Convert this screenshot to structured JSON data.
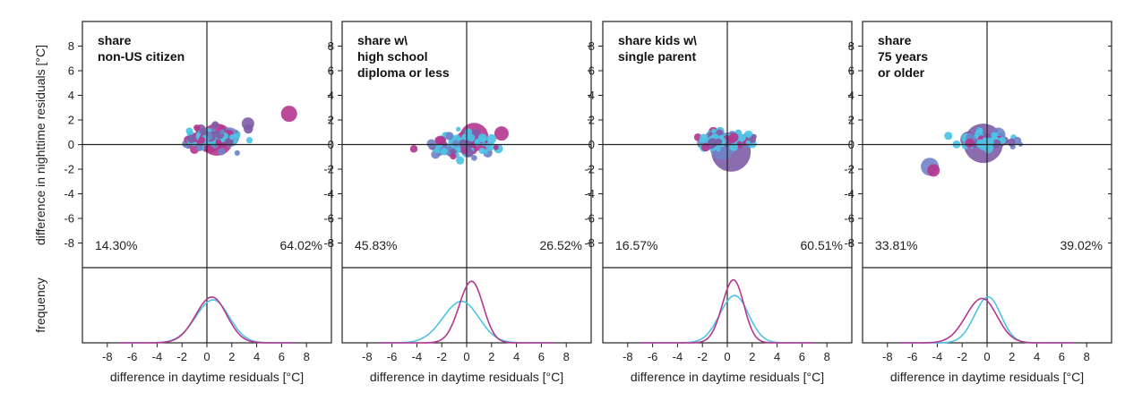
{
  "figure": {
    "ylabel_top": "difference in nighttime residuals [°C]",
    "ylabel_bottom": "frequency",
    "xlabel": "difference in daytime residuals [°C]"
  },
  "colors": {
    "magenta": "#b4378f",
    "cyan": "#4ec3e6",
    "purple": "#7e5ca6",
    "blue": "#6f84c8",
    "axis": "#222222"
  },
  "chart_data": [
    {
      "type": "scatter",
      "title": [
        "share",
        "non-US citizen"
      ],
      "xlim": [
        -10,
        10
      ],
      "ylim": [
        -10,
        10
      ],
      "xticks": [
        -8,
        -6,
        -4,
        -2,
        0,
        2,
        4,
        6,
        8
      ],
      "yticks": [
        -8,
        -6,
        -4,
        -2,
        0,
        2,
        4,
        6,
        8
      ],
      "pct_left": "14.30%",
      "pct_right": "64.02%",
      "big_points": [
        {
          "x": 0.8,
          "y": 0.4,
          "r": 18,
          "c": "magenta"
        },
        {
          "x": 0.2,
          "y": 0.2,
          "r": 12,
          "c": "magenta"
        },
        {
          "x": 1.8,
          "y": 0.6,
          "r": 11,
          "c": "blue"
        },
        {
          "x": 3.3,
          "y": 1.7,
          "r": 7,
          "c": "purple"
        },
        {
          "x": 6.6,
          "y": 2.5,
          "r": 9,
          "c": "magenta"
        },
        {
          "x": -0.5,
          "y": 1.2,
          "r": 6,
          "c": "purple"
        },
        {
          "x": -1.0,
          "y": -0.4,
          "r": 5,
          "c": "magenta"
        }
      ],
      "cloud": {
        "cx": 0.4,
        "cy": 0.4,
        "sx": 2.3,
        "sy": 0.8,
        "n": 70,
        "seed": 11
      },
      "density_magenta": {
        "mu": 0.4,
        "sd": 1.3,
        "peak": 0.64
      },
      "density_cyan": {
        "mu": 0.5,
        "sd": 1.4,
        "peak": 0.6
      }
    },
    {
      "type": "scatter",
      "title": [
        "share w\\",
        "high school",
        "diploma or less"
      ],
      "xlim": [
        -10,
        10
      ],
      "ylim": [
        -10,
        10
      ],
      "xticks": [
        -8,
        -6,
        -4,
        -2,
        0,
        2,
        4,
        6,
        8
      ],
      "yticks": [
        -8,
        -6,
        -4,
        -2,
        0,
        2,
        4,
        6,
        8
      ],
      "pct_left": "45.83%",
      "pct_right": "26.52%",
      "big_points": [
        {
          "x": 0.6,
          "y": 0.6,
          "r": 16,
          "c": "magenta"
        },
        {
          "x": 0.0,
          "y": 0.2,
          "r": 13,
          "c": "magenta"
        },
        {
          "x": 2.8,
          "y": 0.9,
          "r": 8,
          "c": "magenta"
        },
        {
          "x": -1.2,
          "y": -0.5,
          "r": 7,
          "c": "purple"
        },
        {
          "x": -2.5,
          "y": -0.8,
          "r": 5,
          "c": "blue"
        }
      ],
      "cloud": {
        "cx": -0.6,
        "cy": -0.1,
        "sx": 2.6,
        "sy": 0.8,
        "n": 75,
        "seed": 23
      },
      "density_magenta": {
        "mu": 0.4,
        "sd": 1.0,
        "peak": 0.86
      },
      "density_cyan": {
        "mu": -0.4,
        "sd": 1.5,
        "peak": 0.58
      }
    },
    {
      "type": "scatter",
      "title": [
        "share kids w\\",
        "single parent"
      ],
      "xlim": [
        -10,
        10
      ],
      "ylim": [
        -10,
        10
      ],
      "xticks": [
        -8,
        -6,
        -4,
        -2,
        0,
        2,
        4,
        6,
        8
      ],
      "yticks": [
        -8,
        -6,
        -4,
        -2,
        0,
        2,
        4,
        6,
        8
      ],
      "pct_left": "16.57%",
      "pct_right": "60.51%",
      "big_points": [
        {
          "x": 0.3,
          "y": -0.6,
          "r": 22,
          "c": "purple"
        },
        {
          "x": -0.4,
          "y": -0.2,
          "r": 14,
          "c": "blue"
        },
        {
          "x": 1.5,
          "y": 0.3,
          "r": 8,
          "c": "blue"
        },
        {
          "x": -2.0,
          "y": 0.1,
          "r": 6,
          "c": "blue"
        }
      ],
      "cloud": {
        "cx": 0.2,
        "cy": 0.4,
        "sx": 2.2,
        "sy": 0.6,
        "n": 70,
        "seed": 37
      },
      "density_magenta": {
        "mu": 0.5,
        "sd": 0.9,
        "peak": 0.88
      },
      "density_cyan": {
        "mu": 0.6,
        "sd": 1.2,
        "peak": 0.66
      }
    },
    {
      "type": "scatter",
      "title": [
        "share",
        "75 years",
        "or older"
      ],
      "xlim": [
        -10,
        10
      ],
      "ylim": [
        -10,
        10
      ],
      "xticks": [
        -8,
        -6,
        -4,
        -2,
        0,
        2,
        4,
        6,
        8
      ],
      "yticks": [
        -8,
        -6,
        -4,
        -2,
        0,
        2,
        4,
        6,
        8
      ],
      "pct_left": "33.81%",
      "pct_right": "39.02%",
      "big_points": [
        {
          "x": -0.3,
          "y": 0.1,
          "r": 22,
          "c": "purple"
        },
        {
          "x": -4.6,
          "y": -1.8,
          "r": 10,
          "c": "blue"
        },
        {
          "x": -4.3,
          "y": -2.1,
          "r": 7,
          "c": "magenta"
        },
        {
          "x": -1.5,
          "y": 0.4,
          "r": 9,
          "c": "purple"
        },
        {
          "x": 0.9,
          "y": 0.8,
          "r": 8,
          "c": "blue"
        }
      ],
      "cloud": {
        "cx": 0.2,
        "cy": 0.3,
        "sx": 2.4,
        "sy": 0.6,
        "n": 72,
        "seed": 53
      },
      "density_magenta": {
        "mu": -0.4,
        "sd": 1.3,
        "peak": 0.62
      },
      "density_cyan": {
        "mu": 0.1,
        "sd": 1.1,
        "peak": 0.64
      }
    }
  ]
}
